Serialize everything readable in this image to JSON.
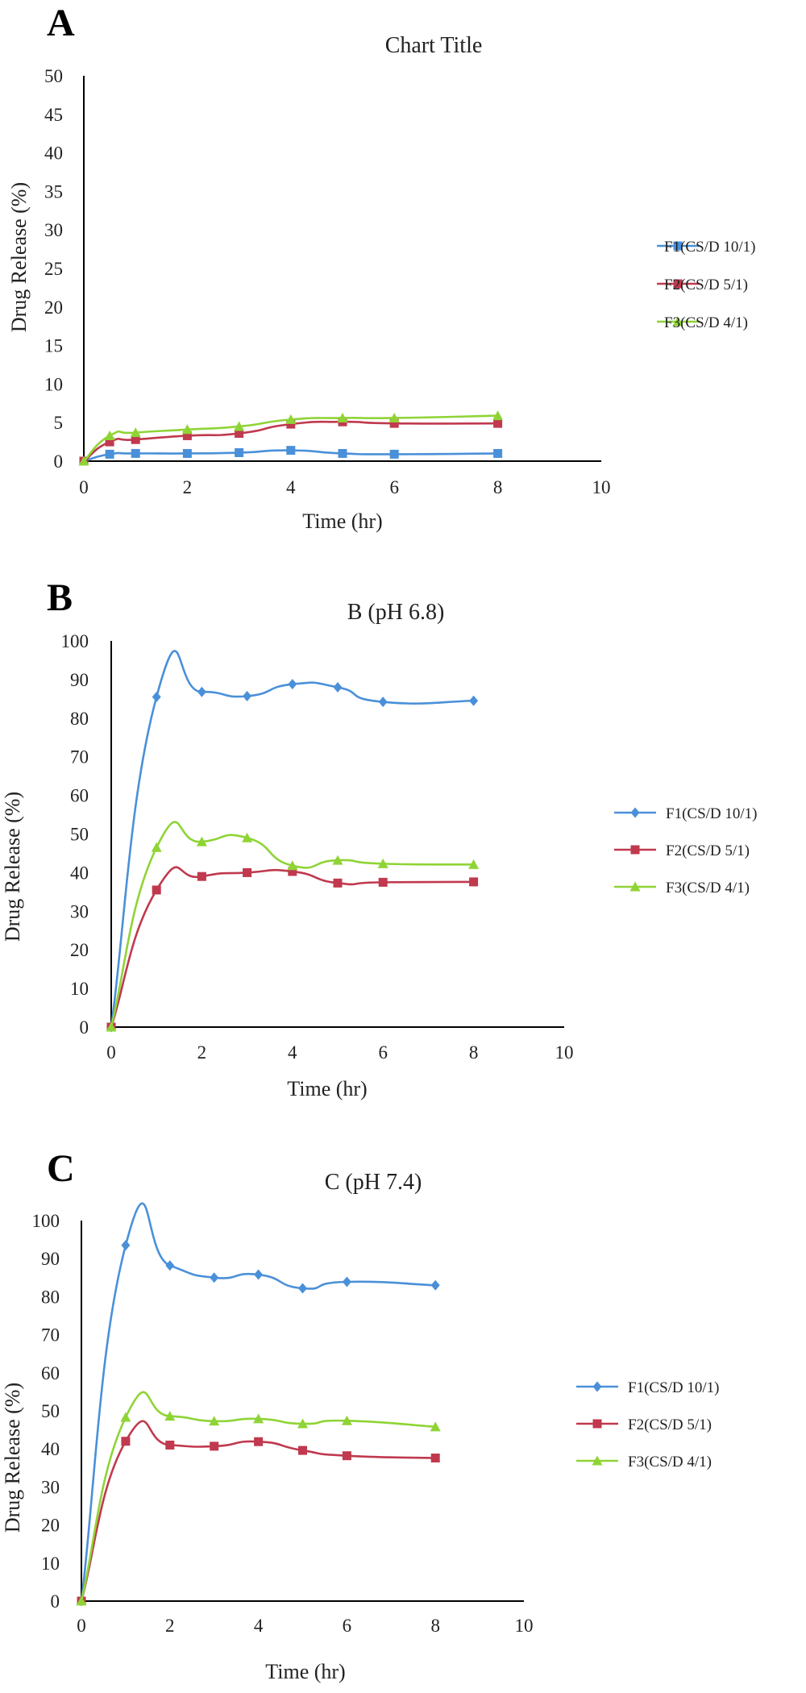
{
  "chart_data": [
    {
      "type": "line",
      "panel_letter": "A",
      "title": "Chart Title",
      "xlabel": "Time (hr)",
      "ylabel": "Drug Release (%)",
      "xlim": [
        0,
        10
      ],
      "ylim": [
        0,
        50
      ],
      "xticks": [
        0,
        2,
        4,
        6,
        8,
        10
      ],
      "yticks": [
        0,
        5,
        10,
        15,
        20,
        25,
        30,
        35,
        40,
        45,
        50
      ],
      "grid": false,
      "legend_position": "right",
      "series": [
        {
          "name": "F1(CS/D 10/1)",
          "color": "#4a90d9",
          "marker": "square",
          "x": [
            0,
            0.5,
            1,
            2,
            3,
            4,
            5,
            6,
            8
          ],
          "y": [
            0,
            0.9,
            1.0,
            1.0,
            1.1,
            1.4,
            1.0,
            0.9,
            1.0
          ]
        },
        {
          "name": "F2(CS/D 5/1)",
          "color": "#c0394e",
          "marker": "square",
          "x": [
            0,
            0.5,
            1,
            2,
            3,
            4,
            5,
            6,
            8
          ],
          "y": [
            0,
            2.5,
            2.8,
            3.3,
            3.6,
            4.8,
            5.1,
            4.9,
            4.9
          ]
        },
        {
          "name": "F3(CS/D 4/1)",
          "color": "#8fd435",
          "marker": "triangle",
          "x": [
            0,
            0.5,
            1,
            2,
            3,
            4,
            5,
            6,
            8
          ],
          "y": [
            0,
            3.3,
            3.7,
            4.1,
            4.5,
            5.4,
            5.6,
            5.6,
            5.9
          ]
        }
      ]
    },
    {
      "type": "line",
      "panel_letter": "B",
      "title": "B (pH 6.8)",
      "xlabel": "Time (hr)",
      "ylabel": "Drug Release (%)",
      "xlim": [
        0,
        10
      ],
      "ylim": [
        0,
        100
      ],
      "xticks": [
        0,
        2,
        4,
        6,
        8,
        10
      ],
      "yticks": [
        0,
        10,
        20,
        30,
        40,
        50,
        60,
        70,
        80,
        90,
        100
      ],
      "grid": false,
      "legend_position": "right",
      "series": [
        {
          "name": "F1(CS/D 10/1)",
          "color": "#4a90d9",
          "marker": "diamond",
          "x": [
            0,
            1,
            2,
            3,
            4,
            5,
            6,
            8
          ],
          "y": [
            0,
            85.5,
            86.8,
            85.7,
            88.8,
            88.0,
            84.2,
            84.5
          ]
        },
        {
          "name": "F2(CS/D 5/1)",
          "color": "#c0394e",
          "marker": "square",
          "x": [
            0,
            1,
            2,
            3,
            4,
            5,
            6,
            8
          ],
          "y": [
            0,
            35.5,
            39.0,
            40.0,
            40.3,
            37.3,
            37.5,
            37.6
          ]
        },
        {
          "name": "F3(CS/D 4/1)",
          "color": "#8fd435",
          "marker": "triangle",
          "x": [
            0,
            1,
            2,
            3,
            4,
            5,
            6,
            8
          ],
          "y": [
            0,
            46.5,
            48.0,
            49.0,
            41.8,
            43.2,
            42.3,
            42.1
          ]
        }
      ]
    },
    {
      "type": "line",
      "panel_letter": "C",
      "title": "C (pH 7.4)",
      "xlabel": "Time (hr)",
      "ylabel": "Drug Release (%)",
      "xlim": [
        0,
        10
      ],
      "ylim": [
        0,
        100
      ],
      "xticks": [
        0,
        2,
        4,
        6,
        8,
        10
      ],
      "yticks": [
        0,
        10,
        20,
        30,
        40,
        50,
        60,
        70,
        80,
        90,
        100
      ],
      "grid": false,
      "legend_position": "right",
      "series": [
        {
          "name": "F1(CS/D 10/1)",
          "color": "#4a90d9",
          "marker": "diamond",
          "x": [
            0,
            1,
            2,
            3,
            4,
            5,
            6,
            8
          ],
          "y": [
            0,
            93.5,
            88.2,
            85.0,
            85.8,
            82.2,
            83.9,
            83.0
          ]
        },
        {
          "name": "F2(CS/D 5/1)",
          "color": "#c0394e",
          "marker": "square",
          "x": [
            0,
            1,
            2,
            3,
            4,
            5,
            6,
            8
          ],
          "y": [
            0,
            42.0,
            41.0,
            40.7,
            41.9,
            39.6,
            38.2,
            37.6
          ]
        },
        {
          "name": "F3(CS/D 4/1)",
          "color": "#8fd435",
          "marker": "triangle",
          "x": [
            0,
            1,
            2,
            3,
            4,
            5,
            6,
            8
          ],
          "y": [
            0,
            48.3,
            48.6,
            47.3,
            47.9,
            46.6,
            47.4,
            45.8
          ]
        }
      ]
    }
  ]
}
